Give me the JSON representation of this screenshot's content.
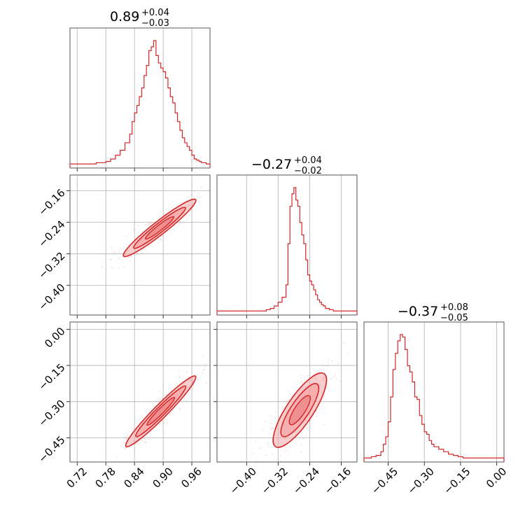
{
  "colors": {
    "series": "#d62728",
    "fill": "#f4a6a6",
    "grid": "#b0b0b0",
    "frame": "#555555"
  },
  "chart_data": {
    "type": "corner",
    "parameters": [
      {
        "name": "",
        "range": [
          0.705,
          0.998
        ],
        "ticks": [
          0.72,
          0.78,
          0.84,
          0.9,
          0.96
        ],
        "tick_labels": [
          "0.72",
          "0.78",
          "0.84",
          "0.90",
          "0.96"
        ],
        "title_value": "0.89",
        "title_plus": "+0.04",
        "title_minus": "−0.03",
        "hist_bins": [
          0.705,
          0.72,
          0.73,
          0.745,
          0.76,
          0.77,
          0.78,
          0.79,
          0.8,
          0.81,
          0.82,
          0.83,
          0.835,
          0.84,
          0.845,
          0.85,
          0.855,
          0.86,
          0.865,
          0.87,
          0.875,
          0.88,
          0.885,
          0.89,
          0.895,
          0.9,
          0.905,
          0.91,
          0.915,
          0.92,
          0.925,
          0.93,
          0.935,
          0.94,
          0.945,
          0.95,
          0.955,
          0.96,
          0.965,
          0.97,
          0.975,
          0.98,
          0.99,
          0.998
        ],
        "hist_counts": [
          1,
          1,
          1,
          1,
          2,
          2,
          3,
          5,
          8,
          12,
          18,
          25,
          35,
          42,
          48,
          55,
          62,
          72,
          80,
          92,
          95,
          100,
          88,
          82,
          78,
          75,
          70,
          62,
          55,
          50,
          42,
          35,
          28,
          22,
          18,
          15,
          12,
          8,
          5,
          4,
          3,
          2,
          1
        ]
      },
      {
        "name": "",
        "range": [
          -0.475,
          -0.12
        ],
        "ticks": [
          -0.4,
          -0.32,
          -0.24,
          -0.16
        ],
        "tick_labels": [
          "−0.40",
          "−0.32",
          "−0.24",
          "−0.16"
        ],
        "title_value": "−0.27",
        "title_plus": "+0.04",
        "title_minus": "−0.02",
        "hist_bins": [
          -0.475,
          -0.4,
          -0.35,
          -0.34,
          -0.33,
          -0.32,
          -0.31,
          -0.3,
          -0.295,
          -0.29,
          -0.285,
          -0.28,
          -0.275,
          -0.27,
          -0.265,
          -0.26,
          -0.255,
          -0.25,
          -0.245,
          -0.24,
          -0.235,
          -0.23,
          -0.225,
          -0.22,
          -0.215,
          -0.21,
          -0.205,
          -0.2,
          -0.19,
          -0.18,
          -0.17,
          -0.16,
          -0.12
        ],
        "hist_counts": [
          1,
          1,
          2,
          3,
          5,
          8,
          12,
          22,
          55,
          85,
          95,
          100,
          90,
          85,
          72,
          62,
          55,
          42,
          30,
          25,
          22,
          18,
          14,
          10,
          8,
          6,
          5,
          3,
          2,
          1,
          1,
          1
        ]
      },
      {
        "name": "",
        "range": [
          -0.55,
          0.03
        ],
        "ticks": [
          -0.45,
          -0.3,
          -0.15,
          0.0
        ],
        "tick_labels": [
          "−0.45",
          "−0.30",
          "−0.15",
          "0.00"
        ],
        "title_value": "−0.37",
        "title_plus": "+0.08",
        "title_minus": "−0.05",
        "hist_bins": [
          -0.55,
          -0.52,
          -0.5,
          -0.48,
          -0.47,
          -0.46,
          -0.45,
          -0.44,
          -0.43,
          -0.42,
          -0.41,
          -0.4,
          -0.39,
          -0.38,
          -0.37,
          -0.36,
          -0.35,
          -0.34,
          -0.33,
          -0.32,
          -0.31,
          -0.3,
          -0.29,
          -0.28,
          -0.27,
          -0.26,
          -0.24,
          -0.22,
          -0.2,
          -0.18,
          -0.16,
          -0.14,
          -0.12,
          -0.1,
          -0.08,
          -0.05,
          -0.02,
          0.03
        ],
        "hist_counts": [
          1,
          2,
          3,
          6,
          12,
          18,
          30,
          50,
          72,
          85,
          95,
          100,
          98,
          88,
          75,
          70,
          62,
          50,
          48,
          35,
          28,
          22,
          20,
          15,
          12,
          10,
          8,
          6,
          4,
          3,
          2,
          1,
          1,
          1,
          1,
          1,
          1
        ]
      }
    ],
    "pairs": [
      {
        "x_param": 0,
        "y_param": 1,
        "correlation": "positive",
        "center": [
          0.89,
          -0.27
        ],
        "line": [
          [
            0.825,
            -0.318
          ],
          [
            0.96,
            -0.19
          ]
        ]
      },
      {
        "x_param": 0,
        "y_param": 2,
        "correlation": "positive",
        "center": [
          0.89,
          -0.37
        ],
        "line": [
          [
            0.83,
            -0.47
          ],
          [
            0.96,
            -0.21
          ]
        ]
      },
      {
        "x_param": 1,
        "y_param": 2,
        "correlation": "positive",
        "center": [
          -0.27,
          -0.37
        ],
        "line": [
          [
            -0.32,
            -0.47
          ],
          [
            -0.21,
            -0.2
          ]
        ]
      }
    ],
    "grid": true,
    "legend": "none"
  }
}
